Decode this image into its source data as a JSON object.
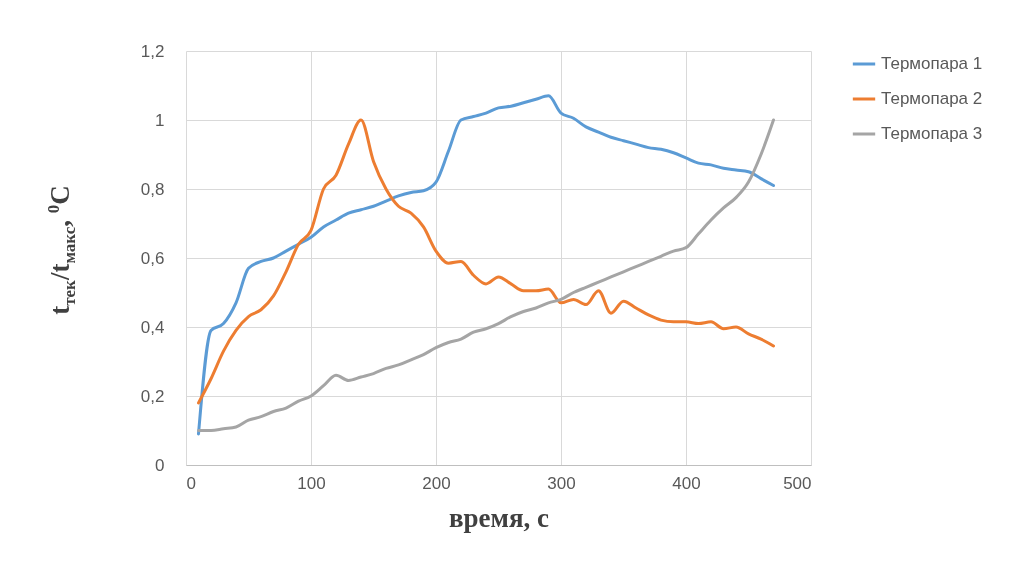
{
  "chart_data": {
    "type": "line",
    "xlabel": "время, с",
    "ylabel": "t$_{тек}$/t$_{макс}$, $^{0}$C",
    "x": [
      10,
      20,
      30,
      40,
      50,
      60,
      70,
      80,
      90,
      100,
      110,
      120,
      130,
      140,
      150,
      160,
      170,
      180,
      190,
      200,
      210,
      220,
      230,
      240,
      250,
      260,
      270,
      280,
      290,
      300,
      310,
      320,
      330,
      340,
      350,
      360,
      370,
      380,
      390,
      400,
      410,
      420,
      430,
      440,
      450,
      460,
      470
    ],
    "series": [
      {
        "name": "Термопара 1",
        "color": "#5b9bd5",
        "values": [
          0.09,
          0.39,
          0.41,
          0.47,
          0.57,
          0.59,
          0.6,
          0.62,
          0.64,
          0.66,
          0.69,
          0.71,
          0.73,
          0.74,
          0.75,
          0.765,
          0.78,
          0.79,
          0.795,
          0.82,
          0.91,
          1.0,
          1.01,
          1.02,
          1.035,
          1.04,
          1.05,
          1.06,
          1.07,
          1.02,
          1.005,
          0.98,
          0.965,
          0.95,
          0.94,
          0.93,
          0.92,
          0.915,
          0.905,
          0.89,
          0.875,
          0.87,
          0.86,
          0.855,
          0.85,
          0.83,
          0.81
        ]
      },
      {
        "name": "Термопара 2",
        "color": "#ed7d31",
        "values": [
          0.18,
          0.25,
          0.33,
          0.39,
          0.43,
          0.45,
          0.49,
          0.56,
          0.64,
          0.68,
          0.8,
          0.84,
          0.93,
          1.0,
          0.88,
          0.8,
          0.75,
          0.73,
          0.69,
          0.62,
          0.585,
          0.59,
          0.55,
          0.525,
          0.545,
          0.525,
          0.505,
          0.505,
          0.51,
          0.47,
          0.48,
          0.465,
          0.505,
          0.44,
          0.475,
          0.455,
          0.435,
          0.42,
          0.415,
          0.415,
          0.41,
          0.415,
          0.395,
          0.4,
          0.38,
          0.365,
          0.345
        ]
      },
      {
        "name": "Термопара 3",
        "color": "#a5a5a5",
        "values": [
          0.1,
          0.1,
          0.105,
          0.11,
          0.13,
          0.14,
          0.155,
          0.165,
          0.185,
          0.2,
          0.23,
          0.26,
          0.245,
          0.255,
          0.265,
          0.28,
          0.29,
          0.305,
          0.32,
          0.34,
          0.355,
          0.365,
          0.385,
          0.395,
          0.41,
          0.43,
          0.445,
          0.455,
          0.47,
          0.48,
          0.5,
          0.515,
          0.53,
          0.545,
          0.56,
          0.575,
          0.59,
          0.605,
          0.62,
          0.63,
          0.67,
          0.71,
          0.745,
          0.775,
          0.82,
          0.9,
          1.0
        ]
      }
    ],
    "xlim": [
      0,
      500
    ],
    "xticks": [
      0,
      100,
      200,
      300,
      400,
      500
    ],
    "ylim": [
      0,
      1.2
    ],
    "yticks": [
      0,
      {
        "value": 0.2,
        "label": "0,2"
      },
      {
        "value": 0.4,
        "label": "0,4"
      },
      {
        "value": 0.6,
        "label": "0,6"
      },
      {
        "value": 0.8,
        "label": "0,8"
      },
      1,
      {
        "value": 1.2,
        "label": "1,2"
      }
    ],
    "grid": true,
    "legend": "right",
    "marker": "none",
    "line_style": "solid"
  }
}
